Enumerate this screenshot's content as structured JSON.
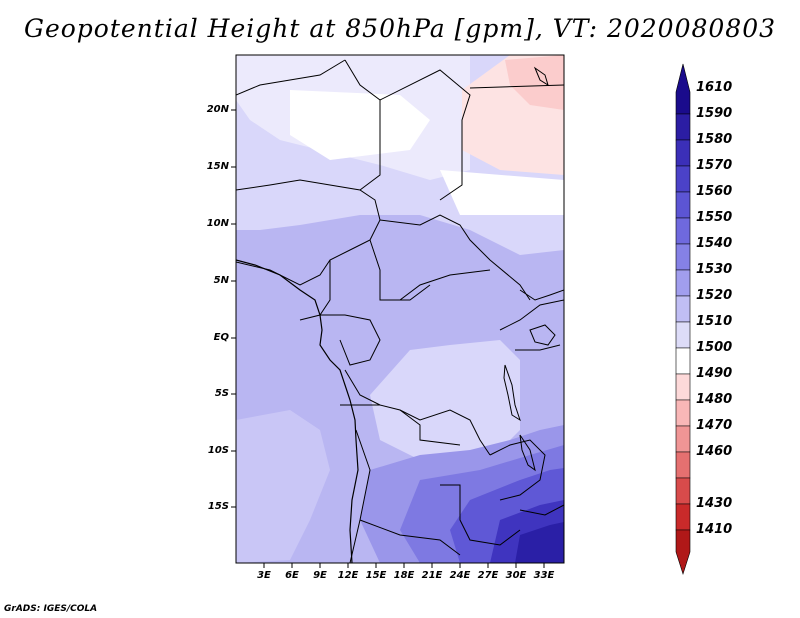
{
  "title": "Geopotential Height at 850hPa [gpm], VT: 2020080803",
  "footer": "GrADS: IGES/COLA",
  "map": {
    "lat_labels": [
      "20N",
      "15N",
      "10N",
      "5N",
      "EQ",
      "5S",
      "10S",
      "15S"
    ],
    "lon_labels": [
      "3E",
      "6E",
      "9E",
      "12E",
      "15E",
      "18E",
      "21E",
      "24E",
      "27E",
      "30E",
      "33E"
    ]
  },
  "colorbar": {
    "levels": [
      "1610",
      "1590",
      "1580",
      "1570",
      "1560",
      "1550",
      "1540",
      "1530",
      "1520",
      "1510",
      "1500",
      "1490",
      "1480",
      "1470",
      "1460",
      "1430",
      "1410"
    ],
    "colors": [
      "#1a0b8c",
      "#2b1da3",
      "#3b2fb8",
      "#4b42c8",
      "#5c55d4",
      "#6f69de",
      "#8581e6",
      "#a19eee",
      "#c0bef4",
      "#dddcf8",
      "#ffffff",
      "#fdd9d9",
      "#f9b7b7",
      "#f09595",
      "#e57070",
      "#d84b4b",
      "#c92a2a",
      "#b01818"
    ]
  }
}
